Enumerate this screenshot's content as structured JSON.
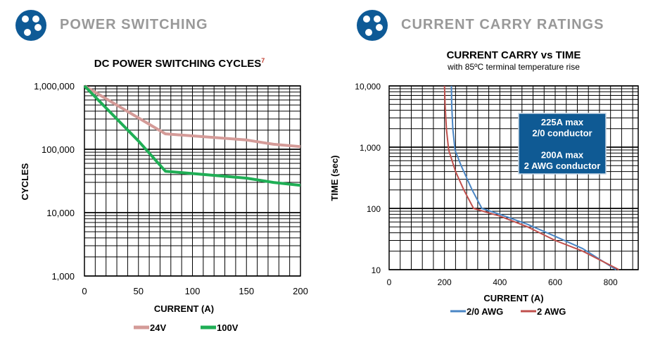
{
  "sections": [
    {
      "title": "POWER SWITCHING",
      "icon": "dots-logo-icon"
    },
    {
      "title": "CURRENT CARRY RATINGS",
      "icon": "dots-logo-icon"
    }
  ],
  "chart_data": [
    {
      "type": "line",
      "title": "DC POWER SWITCHING CYCLES",
      "title_superscript": "7",
      "xlabel": "CURRENT (A)",
      "ylabel": "CYCLES",
      "xlim": [
        0,
        200
      ],
      "ylim": [
        1000,
        1000000
      ],
      "yscale": "log",
      "xticks": [
        0,
        50,
        100,
        150,
        200
      ],
      "xtick_labels": [
        "0",
        "50",
        "100",
        "150",
        "200"
      ],
      "yticks": [
        1000,
        10000,
        100000,
        1000000
      ],
      "ytick_labels": [
        "1,000",
        "10,000",
        "100,000",
        "1,000,000"
      ],
      "grid": true,
      "legend": "bottom",
      "series": [
        {
          "name": "24V",
          "color": "#d49b98",
          "x": [
            0,
            75,
            150,
            175,
            200
          ],
          "y": [
            1000000,
            175000,
            140000,
            120000,
            110000
          ]
        },
        {
          "name": "100V",
          "color": "#1fae55",
          "x": [
            0,
            50,
            75,
            150,
            175,
            200
          ],
          "y": [
            1000000,
            135000,
            45000,
            35000,
            30000,
            27000
          ]
        }
      ]
    },
    {
      "type": "line",
      "title": "CURRENT CARRY vs TIME",
      "subtitle": "with 85ºC terminal temperature rise",
      "xlabel": "CURRENT (A)",
      "ylabel": "TIME (sec)",
      "xlim": [
        0,
        900
      ],
      "ylim": [
        10,
        10000
      ],
      "yscale": "log",
      "xticks": [
        0,
        200,
        400,
        600,
        800
      ],
      "xtick_labels": [
        "0",
        "200",
        "400",
        "600",
        "800"
      ],
      "yticks": [
        10,
        100,
        1000,
        10000
      ],
      "ytick_labels": [
        "10",
        "100",
        "1,000",
        "10,000"
      ],
      "grid": true,
      "legend": "bottom",
      "annotation": {
        "lines": [
          "225A max",
          "2/0 conductor",
          "",
          "200A max",
          "2 AWG conductor"
        ],
        "background": "#0f5a94"
      },
      "series": [
        {
          "name": "2/0 AWG",
          "color": "#4a86c5",
          "x": [
            225,
            226,
            230,
            238,
            260,
            300,
            335,
            400,
            500,
            600,
            700,
            820
          ],
          "y": [
            10000,
            5000,
            2000,
            900,
            500,
            200,
            100,
            80,
            55,
            35,
            22,
            10
          ]
        },
        {
          "name": "2 AWG",
          "color": "#c0504d",
          "x": [
            200,
            202,
            207,
            215,
            240,
            270,
            305,
            400,
            500,
            600,
            700,
            830
          ],
          "y": [
            10000,
            5000,
            2000,
            900,
            400,
            200,
            100,
            75,
            50,
            30,
            20,
            10
          ]
        }
      ]
    }
  ]
}
